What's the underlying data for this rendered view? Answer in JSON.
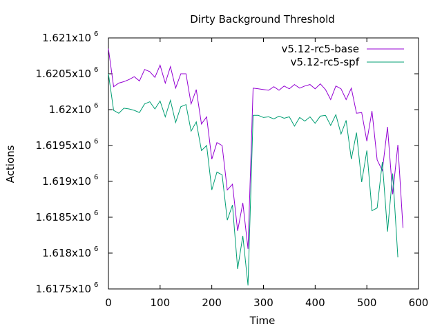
{
  "chart_data": {
    "type": "line",
    "title": "Dirty Background Threshold",
    "xlabel": "Time",
    "ylabel": "Actions",
    "xlim": [
      0,
      600
    ],
    "ylim": [
      1617500,
      1621000
    ],
    "xticks": [
      0,
      100,
      200,
      300,
      400,
      500,
      600
    ],
    "xtick_labels": [
      "0",
      "100",
      "200",
      "300",
      "400",
      "500",
      "600"
    ],
    "yticks": [
      1617500,
      1618000,
      1618500,
      1619000,
      1619500,
      1620000,
      1620500,
      1621000
    ],
    "ytick_labels": [
      {
        "mantissa": "1.6175x10",
        "exponent": "6"
      },
      {
        "mantissa": "1.618x10",
        "exponent": "6"
      },
      {
        "mantissa": "1.6185x10",
        "exponent": "6"
      },
      {
        "mantissa": "1.619x10",
        "exponent": "6"
      },
      {
        "mantissa": "1.6195x10",
        "exponent": "6"
      },
      {
        "mantissa": "1.62x10",
        "exponent": "6"
      },
      {
        "mantissa": "1.6205x10",
        "exponent": "6"
      },
      {
        "mantissa": "1.621x10",
        "exponent": "6"
      }
    ],
    "grid": false,
    "legend_position": "top-right",
    "series": [
      {
        "name": "v5.12-rc5-base",
        "color": "#9400d3",
        "points": [
          [
            0,
            1620850
          ],
          [
            10,
            1620320
          ],
          [
            20,
            1620370
          ],
          [
            30,
            1620390
          ],
          [
            40,
            1620420
          ],
          [
            50,
            1620460
          ],
          [
            60,
            1620400
          ],
          [
            70,
            1620560
          ],
          [
            80,
            1620530
          ],
          [
            90,
            1620450
          ],
          [
            100,
            1620620
          ],
          [
            110,
            1620370
          ],
          [
            120,
            1620600
          ],
          [
            130,
            1620300
          ],
          [
            140,
            1620500
          ],
          [
            150,
            1620500
          ],
          [
            160,
            1620080
          ],
          [
            170,
            1620280
          ],
          [
            180,
            1619800
          ],
          [
            190,
            1619900
          ],
          [
            200,
            1619310
          ],
          [
            210,
            1619540
          ],
          [
            220,
            1619500
          ],
          [
            230,
            1618880
          ],
          [
            240,
            1618960
          ],
          [
            250,
            1618310
          ],
          [
            260,
            1618700
          ],
          [
            270,
            1618060
          ],
          [
            280,
            1620300
          ],
          [
            290,
            1620290
          ],
          [
            300,
            1620280
          ],
          [
            310,
            1620270
          ],
          [
            320,
            1620320
          ],
          [
            330,
            1620270
          ],
          [
            340,
            1620330
          ],
          [
            350,
            1620290
          ],
          [
            360,
            1620350
          ],
          [
            370,
            1620300
          ],
          [
            380,
            1620330
          ],
          [
            390,
            1620350
          ],
          [
            400,
            1620290
          ],
          [
            410,
            1620360
          ],
          [
            420,
            1620280
          ],
          [
            430,
            1620140
          ],
          [
            440,
            1620330
          ],
          [
            450,
            1620290
          ],
          [
            460,
            1620140
          ],
          [
            470,
            1620300
          ],
          [
            480,
            1619950
          ],
          [
            490,
            1619960
          ],
          [
            500,
            1619560
          ],
          [
            510,
            1619980
          ],
          [
            520,
            1619300
          ],
          [
            530,
            1619150
          ],
          [
            540,
            1619760
          ],
          [
            550,
            1618820
          ],
          [
            560,
            1619510
          ],
          [
            570,
            1618350
          ]
        ]
      },
      {
        "name": "v5.12-rc5-spf",
        "color": "#009e73",
        "points": [
          [
            0,
            1620500
          ],
          [
            10,
            1619990
          ],
          [
            20,
            1619950
          ],
          [
            30,
            1620020
          ],
          [
            40,
            1620010
          ],
          [
            50,
            1619990
          ],
          [
            60,
            1619960
          ],
          [
            70,
            1620080
          ],
          [
            80,
            1620110
          ],
          [
            90,
            1620010
          ],
          [
            100,
            1620120
          ],
          [
            110,
            1619900
          ],
          [
            120,
            1620130
          ],
          [
            130,
            1619820
          ],
          [
            140,
            1620040
          ],
          [
            150,
            1620070
          ],
          [
            160,
            1619700
          ],
          [
            170,
            1619830
          ],
          [
            180,
            1619430
          ],
          [
            190,
            1619500
          ],
          [
            200,
            1618880
          ],
          [
            210,
            1619130
          ],
          [
            220,
            1619090
          ],
          [
            230,
            1618460
          ],
          [
            240,
            1618670
          ],
          [
            250,
            1617780
          ],
          [
            260,
            1618240
          ],
          [
            270,
            1617550
          ],
          [
            280,
            1619920
          ],
          [
            290,
            1619920
          ],
          [
            300,
            1619890
          ],
          [
            310,
            1619900
          ],
          [
            320,
            1619870
          ],
          [
            330,
            1619910
          ],
          [
            340,
            1619880
          ],
          [
            350,
            1619900
          ],
          [
            360,
            1619770
          ],
          [
            370,
            1619890
          ],
          [
            380,
            1619840
          ],
          [
            390,
            1619900
          ],
          [
            400,
            1619810
          ],
          [
            410,
            1619910
          ],
          [
            420,
            1619920
          ],
          [
            430,
            1619780
          ],
          [
            440,
            1619930
          ],
          [
            450,
            1619660
          ],
          [
            460,
            1619850
          ],
          [
            470,
            1619310
          ],
          [
            480,
            1619680
          ],
          [
            490,
            1618990
          ],
          [
            500,
            1619430
          ],
          [
            510,
            1618590
          ],
          [
            520,
            1618630
          ],
          [
            530,
            1619270
          ],
          [
            540,
            1618300
          ],
          [
            550,
            1619110
          ],
          [
            560,
            1617940
          ]
        ]
      }
    ]
  }
}
